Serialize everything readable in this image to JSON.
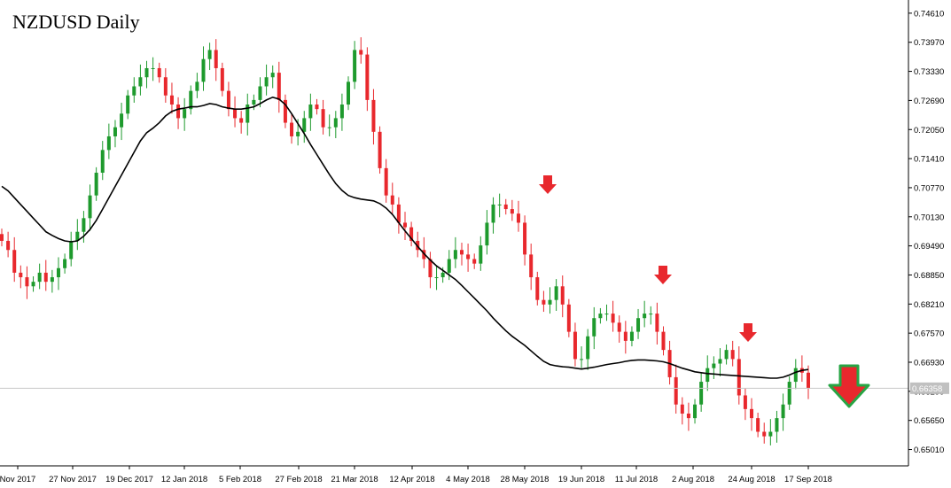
{
  "chart_data": {
    "type": "candlestick",
    "title": "NZDUSD Daily",
    "symbol": "NZDUSD",
    "timeframe": "Daily",
    "current_price": "0.66358",
    "ylim": [
      0.6465,
      0.749
    ],
    "y_ticks": [
      "0.74610",
      "0.73970",
      "0.73330",
      "0.72690",
      "0.72050",
      "0.71410",
      "0.70770",
      "0.70130",
      "0.69490",
      "0.68850",
      "0.68210",
      "0.67570",
      "0.66930",
      "0.66290",
      "0.65650",
      "0.65010"
    ],
    "x_ticks": [
      "Nov 2017",
      "27 Nov 2017",
      "19 Dec 2017",
      "12 Jan 2018",
      "5 Feb 2018",
      "27 Feb 2018",
      "21 Mar 2018",
      "12 Apr 2018",
      "4 May 2018",
      "28 May 2018",
      "19 Jun 2018",
      "11 Jul 2018",
      "2 Aug 2018",
      "24 Aug 2018",
      "17 Sep 2018"
    ],
    "series": [
      {
        "name": "",
        "kind": "close",
        "values": [
          0.696,
          0.694,
          0.689,
          0.688,
          0.686,
          0.687,
          0.689,
          0.687,
          0.688,
          0.69,
          0.692,
          0.696,
          0.698,
          0.701,
          0.706,
          0.711,
          0.716,
          0.719,
          0.721,
          0.724,
          0.728,
          0.73,
          0.732,
          0.734,
          0.734,
          0.732,
          0.728,
          0.726,
          0.723,
          0.725,
          0.729,
          0.731,
          0.736,
          0.738,
          0.734,
          0.729,
          0.725,
          0.723,
          0.722,
          0.726,
          0.727,
          0.73,
          0.732,
          0.733,
          0.727,
          0.722,
          0.719,
          0.72,
          0.723,
          0.726,
          0.725,
          0.721,
          0.721,
          0.723,
          0.726,
          0.731,
          0.738,
          0.737,
          0.727,
          0.72,
          0.712,
          0.706,
          0.704,
          0.7,
          0.699,
          0.696,
          0.694,
          0.692,
          0.688,
          0.688,
          0.689,
          0.692,
          0.694,
          0.693,
          0.692,
          0.691,
          0.695,
          0.7,
          0.704,
          0.704,
          0.703,
          0.702,
          0.7,
          0.693,
          0.688,
          0.683,
          0.682,
          0.683,
          0.686,
          0.682,
          0.676,
          0.67,
          0.67,
          0.675,
          0.679,
          0.68,
          0.68,
          0.678,
          0.676,
          0.674,
          0.676,
          0.679,
          0.68,
          0.68,
          0.676,
          0.672,
          0.666,
          0.66,
          0.658,
          0.657,
          0.66,
          0.665,
          0.668,
          0.669,
          0.67,
          0.672,
          0.67,
          0.662,
          0.659,
          0.657,
          0.654,
          0.653,
          0.654,
          0.657,
          0.66,
          0.665,
          0.668,
          0.667,
          0.6636
        ]
      },
      {
        "name": "",
        "kind": "moving average",
        "values": [
          0.708,
          0.707,
          0.7055,
          0.704,
          0.7025,
          0.701,
          0.6995,
          0.698,
          0.6972,
          0.6965,
          0.696,
          0.6958,
          0.696,
          0.697,
          0.6985,
          0.7005,
          0.703,
          0.7055,
          0.708,
          0.7105,
          0.713,
          0.7155,
          0.718,
          0.7198,
          0.7208,
          0.722,
          0.7235,
          0.7245,
          0.725,
          0.7252,
          0.7255,
          0.7255,
          0.7258,
          0.7262,
          0.726,
          0.7255,
          0.7252,
          0.725,
          0.725,
          0.7252,
          0.7255,
          0.7262,
          0.727,
          0.7276,
          0.7272,
          0.726,
          0.724,
          0.7218,
          0.7196,
          0.7172,
          0.715,
          0.7128,
          0.7106,
          0.7086,
          0.7071,
          0.706,
          0.7055,
          0.7052,
          0.705,
          0.7048,
          0.7042,
          0.7032,
          0.7018,
          0.7,
          0.6982,
          0.6965,
          0.6948,
          0.6932,
          0.6918,
          0.6905,
          0.6895,
          0.6885,
          0.6875,
          0.6862,
          0.6848,
          0.6834,
          0.682,
          0.6806,
          0.679,
          0.6776,
          0.6762,
          0.675,
          0.674,
          0.673,
          0.6718,
          0.6706,
          0.6695,
          0.6688,
          0.6685,
          0.6683,
          0.6682,
          0.668,
          0.6678,
          0.668,
          0.6682,
          0.6685,
          0.6688,
          0.669,
          0.6692,
          0.6695,
          0.6697,
          0.6698,
          0.6698,
          0.6697,
          0.6696,
          0.6694,
          0.669,
          0.6685,
          0.668,
          0.6676,
          0.6672,
          0.667,
          0.6668,
          0.6667,
          0.6666,
          0.6665,
          0.6664,
          0.6663,
          0.6662,
          0.6661,
          0.666,
          0.6659,
          0.6658,
          0.6658,
          0.666,
          0.6665,
          0.6671,
          0.6675,
          0.6677
        ]
      }
    ],
    "annotations": [
      {
        "type": "down-arrow",
        "color": "#e8282d",
        "label": "sell signal"
      },
      {
        "type": "down-arrow",
        "color": "#e8282d",
        "label": "sell signal"
      },
      {
        "type": "down-arrow",
        "color": "#e8282d",
        "label": "sell signal"
      },
      {
        "type": "big-down-arrow",
        "color": "#e8282d",
        "outline": "#27a544",
        "label": "forecast"
      }
    ],
    "colors": {
      "bull": "#1e9a2d",
      "bear": "#e8282d",
      "ma": "#000000",
      "grid_price_line": "#c8c8c8",
      "axis": "#000000",
      "price_label_bg": "#c0c0c0"
    }
  }
}
